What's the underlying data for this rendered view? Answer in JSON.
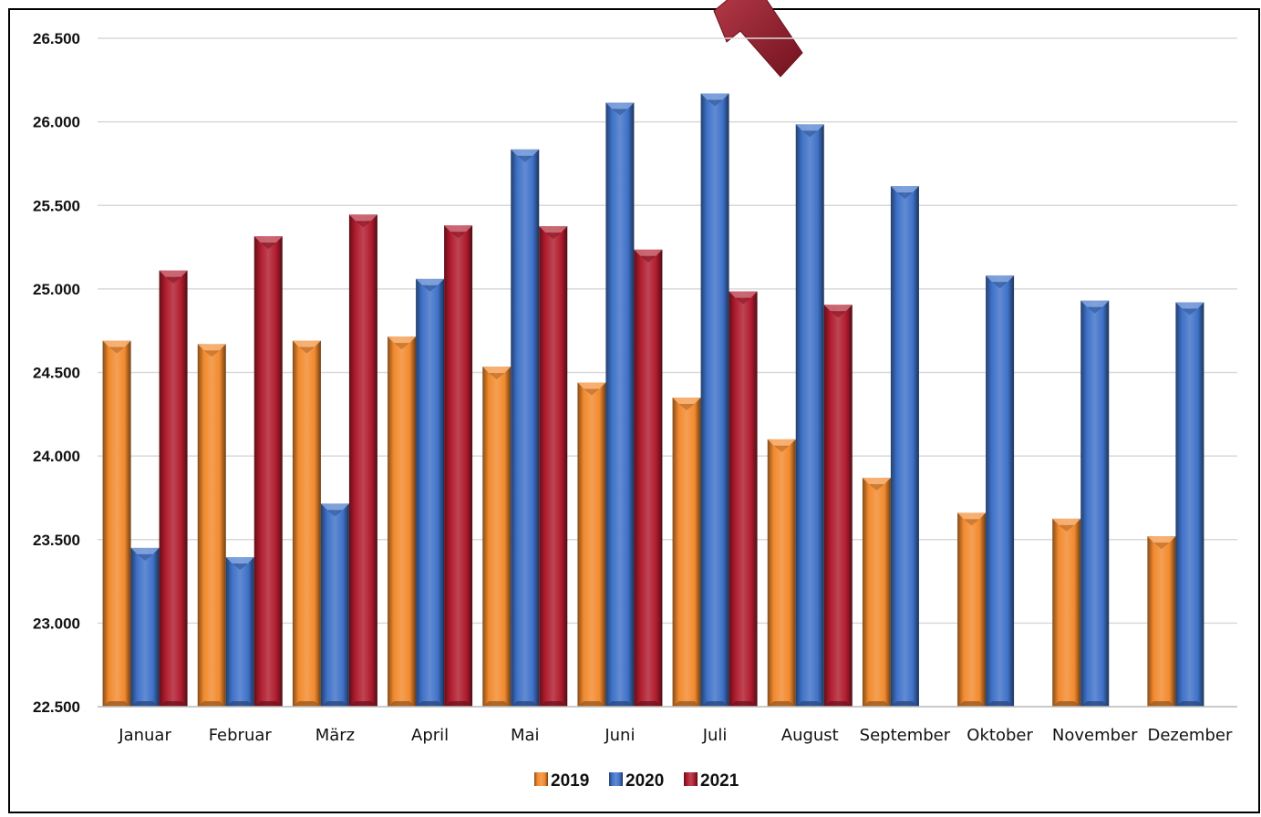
{
  "chart_data": {
    "type": "bar",
    "title": "",
    "xlabel": "",
    "ylabel": "",
    "ylim": [
      22500,
      26500
    ],
    "yticks": [
      22500,
      23000,
      23500,
      24000,
      24500,
      25000,
      25500,
      26000,
      26500
    ],
    "ytick_labels": [
      "22.500",
      "23.000",
      "23.500",
      "24.000",
      "24.500",
      "25.000",
      "25.500",
      "26.000",
      "26.500"
    ],
    "grid": true,
    "legend_position": "bottom",
    "categories": [
      "Januar",
      "Februar",
      "März",
      "April",
      "Mai",
      "Juni",
      "Juli",
      "August",
      "September",
      "Oktober",
      "November",
      "Dezember"
    ],
    "series": [
      {
        "name": "2019",
        "color": "#F28A2E",
        "values": [
          24690,
          24670,
          24690,
          24715,
          24535,
          24440,
          24350,
          24100,
          23870,
          23660,
          23625,
          23520
        ]
      },
      {
        "name": "2020",
        "color": "#3F72C8",
        "values": [
          23450,
          23395,
          23715,
          25060,
          25835,
          26115,
          26170,
          25985,
          25615,
          25080,
          24930,
          24920
        ]
      },
      {
        "name": "2021",
        "color": "#B01C2E",
        "values": [
          25110,
          25315,
          25445,
          25380,
          25375,
          25235,
          24985,
          24905,
          null,
          null,
          null,
          null
        ]
      }
    ],
    "annotation": {
      "type": "arrow",
      "color": "#B01C2E"
    }
  }
}
